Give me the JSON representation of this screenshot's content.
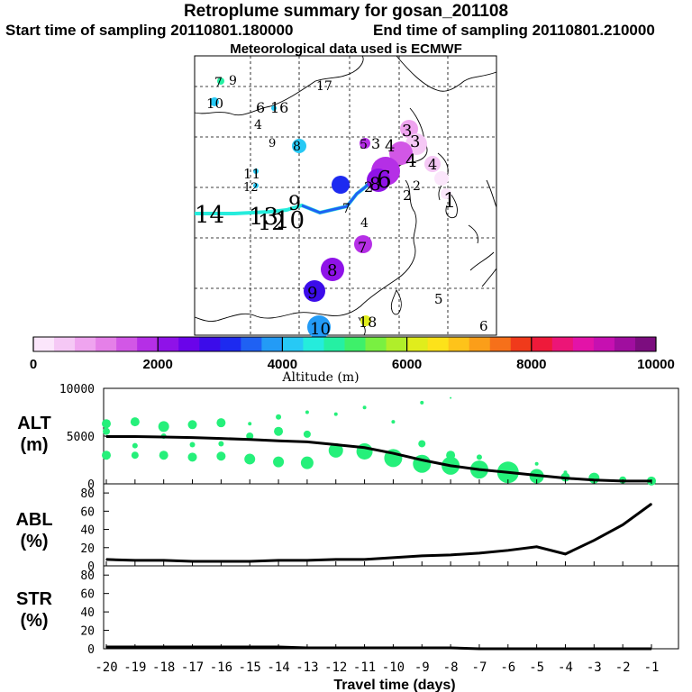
{
  "header": {
    "title": "Retroplume summary for gosan_201108",
    "start": "Start time of sampling 20110801.180000",
    "end": "End time of sampling 20110801.210000",
    "met": "Meteorological data used is ECMWF"
  },
  "colorbar": {
    "ticks": [
      "0",
      "2000",
      "4000",
      "6000",
      "8000",
      "10000"
    ],
    "label": "Altitude (m)",
    "colors": [
      "#fbe6fb",
      "#f5c8f5",
      "#efa4ef",
      "#e580e8",
      "#d257e6",
      "#b52fe6",
      "#8f12e8",
      "#6a04ea",
      "#3c0cea",
      "#1d2af0",
      "#1f61f3",
      "#239bf6",
      "#27c9f5",
      "#25ecdc",
      "#25f0a3",
      "#3ef06a",
      "#79f041",
      "#b0ee2a",
      "#e0ed1c",
      "#fde21a",
      "#fec31a",
      "#fb9e19",
      "#f6701a",
      "#f03a1b",
      "#ee1a3a",
      "#ec1577",
      "#e313a8",
      "#c610b1",
      "#a00e9f",
      "#7c0d7f"
    ]
  },
  "map": {
    "labels": [
      {
        "t": "7"
      },
      {
        "t": "9"
      },
      {
        "t": "10"
      },
      {
        "t": "17"
      },
      {
        "t": "6"
      },
      {
        "t": "16"
      },
      {
        "t": "4"
      },
      {
        "t": "9"
      },
      {
        "t": "8"
      },
      {
        "t": "5"
      },
      {
        "t": "3"
      },
      {
        "t": "4"
      },
      {
        "t": "3"
      },
      {
        "t": "3"
      },
      {
        "t": "4"
      },
      {
        "t": "4"
      },
      {
        "t": "11"
      },
      {
        "t": "12"
      },
      {
        "t": "9"
      },
      {
        "t": "2"
      },
      {
        "t": "8"
      },
      {
        "t": "7"
      },
      {
        "t": "6"
      },
      {
        "t": "2"
      },
      {
        "t": "2"
      },
      {
        "t": "1"
      },
      {
        "t": "14"
      },
      {
        "t": "13"
      },
      {
        "t": "12"
      },
      {
        "t": "10"
      },
      {
        "t": "4"
      },
      {
        "t": "7"
      },
      {
        "t": "8"
      },
      {
        "t": "9"
      },
      {
        "t": "10"
      },
      {
        "t": "18"
      },
      {
        "t": "5"
      },
      {
        "t": "6"
      }
    ]
  },
  "chart_data": [
    {
      "type": "scatter",
      "name": "ALT",
      "ylabel": "ALT (m)",
      "ylim": [
        0,
        10000
      ],
      "yticks": [
        "10000",
        "5000",
        "0"
      ],
      "x": [
        -20,
        -19,
        -18,
        -17,
        -16,
        -15,
        -14,
        -13,
        -12,
        -11,
        -10,
        -9,
        -8,
        -7,
        -6,
        -5,
        -4,
        -3,
        -2,
        -1
      ],
      "series": [
        {
          "name": "median altitude",
          "values": [
            4950,
            4950,
            4900,
            4850,
            4750,
            4650,
            4500,
            4400,
            4100,
            3800,
            3200,
            2500,
            1900,
            1500,
            1200,
            900,
            600,
            400,
            300,
            300
          ]
        }
      ]
    },
    {
      "type": "line",
      "name": "ABL",
      "ylabel": "ABL (%)",
      "ylim": [
        0,
        90
      ],
      "yticks": [
        "80",
        "60",
        "40",
        "20",
        "0"
      ],
      "x": [
        -20,
        -19,
        -18,
        -17,
        -16,
        -15,
        -14,
        -13,
        -12,
        -11,
        -10,
        -9,
        -8,
        -7,
        -6,
        -5,
        -4,
        -3,
        -2,
        -1
      ],
      "series": [
        {
          "name": "ABL fraction",
          "values": [
            7,
            6,
            6,
            5,
            5,
            5,
            6,
            6,
            7,
            7,
            9,
            11,
            12,
            14,
            17,
            21,
            13,
            28,
            45,
            68
          ]
        }
      ]
    },
    {
      "type": "line",
      "name": "STR",
      "ylabel": "STR (%)",
      "ylim": [
        0,
        90
      ],
      "yticks": [
        "80",
        "60",
        "40",
        "20",
        "0"
      ],
      "xlabel": "Travel time (days)",
      "xticks": [
        "-20",
        "-19",
        "-18",
        "-17",
        "-16",
        "-15",
        "-14",
        "-13",
        "-12",
        "-11",
        "-10",
        "-9",
        "-8",
        "-7",
        "-6",
        "-5",
        "-4",
        "-3",
        "-2",
        "-1"
      ],
      "x": [
        -20,
        -19,
        -18,
        -17,
        -16,
        -15,
        -14,
        -13,
        -12,
        -11,
        -10,
        -9,
        -8,
        -7,
        -6,
        -5,
        -4,
        -3,
        -2,
        -1
      ],
      "series": [
        {
          "name": "stratospheric fraction",
          "values": [
            2,
            2,
            2,
            2,
            2,
            2,
            2,
            1,
            1,
            1,
            1,
            1,
            1,
            0,
            0,
            0,
            0,
            0,
            0,
            0
          ]
        }
      ]
    }
  ]
}
